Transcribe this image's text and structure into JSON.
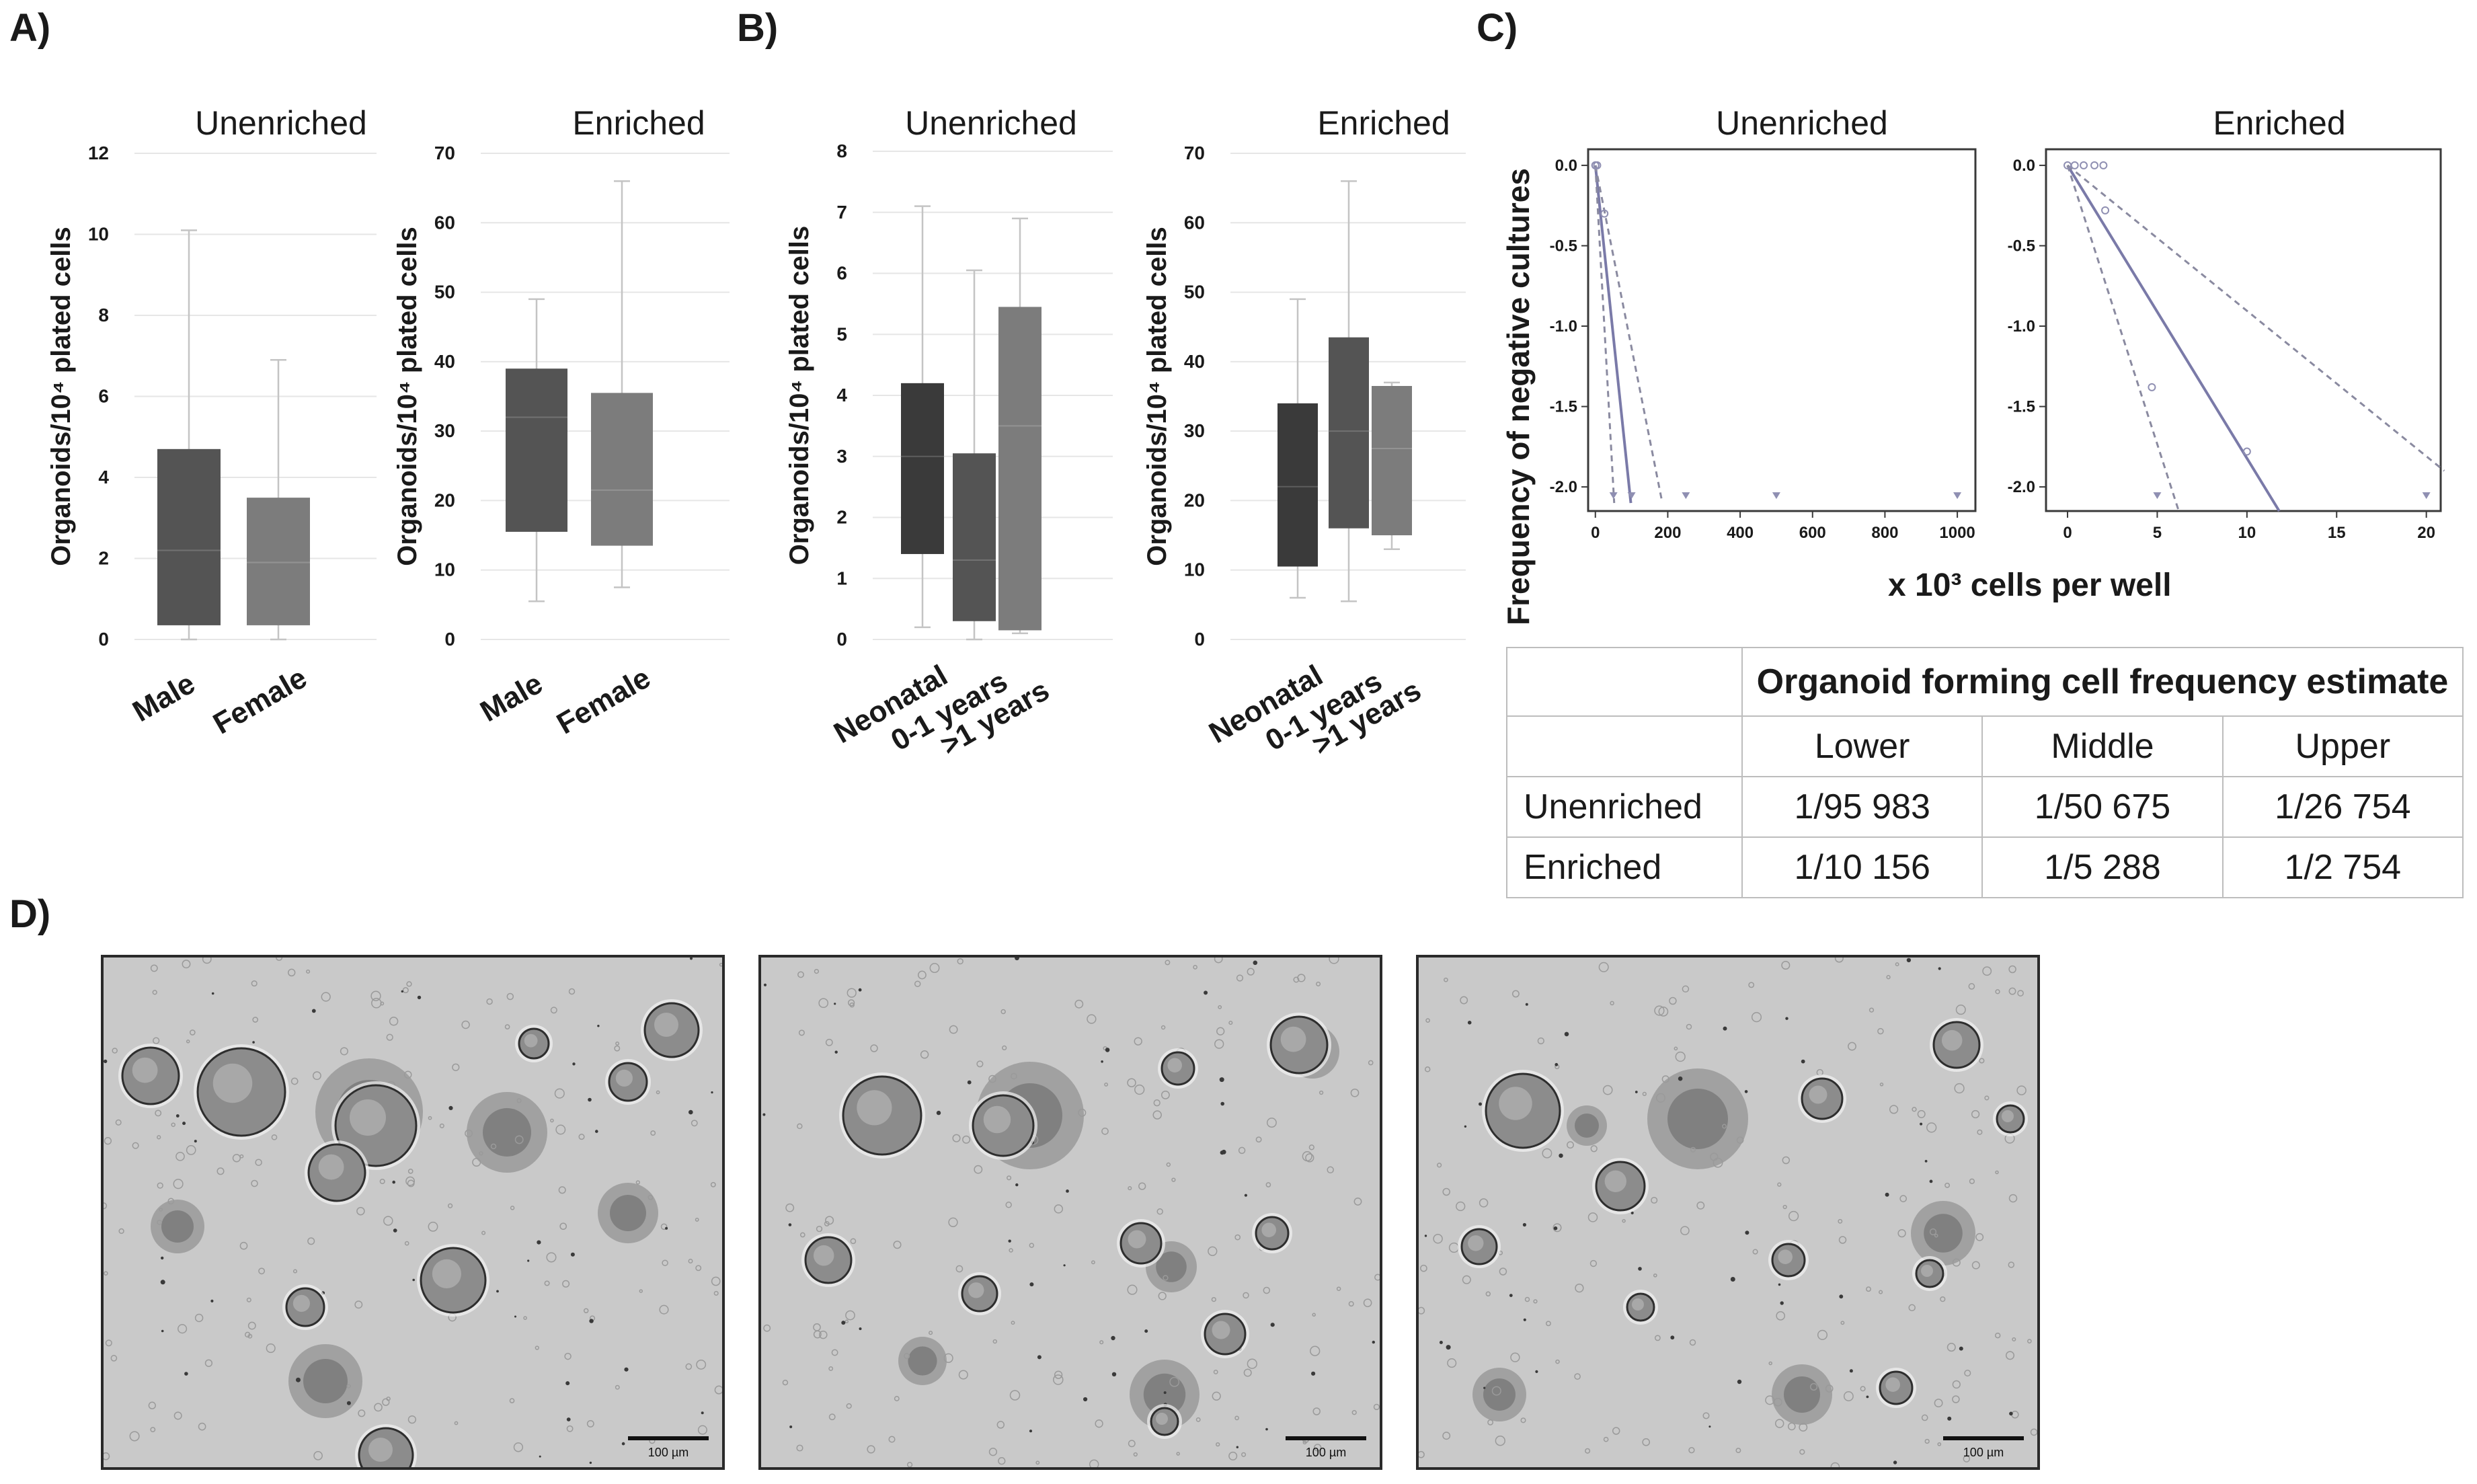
{
  "panel_labels": [
    "A)",
    "B)",
    "C)",
    "D)"
  ],
  "colors": {
    "box_dark": "#3a3a3a",
    "box_mid": "#545454",
    "box_light": "#7c7c7c",
    "line_main": "#7a7aa8",
    "line_ci": "#8a8aa0"
  },
  "chart_data": [
    {
      "type": "boxplot",
      "panel": "A",
      "title": "Unenriched",
      "ylabel": "Organoids/10⁴ plated cells",
      "categories": [
        "Male",
        "Female"
      ],
      "ylim": [
        0,
        12
      ],
      "yticks": [
        "0",
        "2",
        "4",
        "6",
        "8",
        "10",
        "12"
      ],
      "boxes": [
        {
          "category": "Male",
          "min": 0.0,
          "q1": 0.35,
          "median": 2.2,
          "q3": 4.7,
          "max": 10.1
        },
        {
          "category": "Female",
          "min": 0.0,
          "q1": 0.35,
          "median": 1.9,
          "q3": 3.5,
          "max": 6.9
        }
      ]
    },
    {
      "type": "boxplot",
      "panel": "A",
      "title": "Enriched",
      "ylabel": "Organoids/10⁴ plated cells",
      "categories": [
        "Male",
        "Female"
      ],
      "ylim": [
        0,
        70
      ],
      "yticks": [
        "0",
        "10",
        "20",
        "30",
        "40",
        "50",
        "60",
        "70"
      ],
      "boxes": [
        {
          "category": "Male",
          "min": 5.5,
          "q1": 15.5,
          "median": 32,
          "q3": 39,
          "max": 49
        },
        {
          "category": "Female",
          "min": 7.5,
          "q1": 13.5,
          "median": 21.5,
          "q3": 35.5,
          "max": 66
        }
      ]
    },
    {
      "type": "boxplot",
      "panel": "B",
      "title": "Unenriched",
      "ylabel": "Organoids/10⁴ plated cells",
      "categories": [
        "Neonatal",
        "0-1 years",
        ">1 years"
      ],
      "ylim": [
        0,
        8
      ],
      "yticks": [
        "0",
        "1",
        "2",
        "3",
        "4",
        "5",
        "6",
        "7",
        "8"
      ],
      "boxes": [
        {
          "category": "Neonatal",
          "min": 0.2,
          "q1": 1.4,
          "median": 3.0,
          "q3": 4.2,
          "max": 7.1
        },
        {
          "category": "0-1 years",
          "min": 0.0,
          "q1": 0.3,
          "median": 1.3,
          "q3": 3.05,
          "max": 6.05
        },
        {
          "category": ">1 years",
          "min": 0.1,
          "q1": 0.15,
          "median": 3.5,
          "q3": 5.45,
          "max": 6.9
        }
      ]
    },
    {
      "type": "boxplot",
      "panel": "B",
      "title": "Enriched",
      "ylabel": "Organoids/10⁴ plated cells",
      "categories": [
        "Neonatal",
        "0-1 years",
        ">1 years"
      ],
      "ylim": [
        0,
        70
      ],
      "yticks": [
        "0",
        "10",
        "20",
        "30",
        "40",
        "50",
        "60",
        "70"
      ],
      "boxes": [
        {
          "category": "Neonatal",
          "min": 6,
          "q1": 10.5,
          "median": 22,
          "q3": 34,
          "max": 49
        },
        {
          "category": "0-1 years",
          "min": 5.5,
          "q1": 16,
          "median": 30,
          "q3": 43.5,
          "max": 66
        },
        {
          "category": ">1 years",
          "min": 13,
          "q1": 15,
          "median": 27.5,
          "q3": 36.5,
          "max": 37
        }
      ]
    },
    {
      "type": "line",
      "panel": "C",
      "title": "Unenriched",
      "ylabel": "Frequency of negative cultures",
      "xlabel": "x 10³ cells per well",
      "xlim": [
        -20,
        1050
      ],
      "ylim": [
        -2.15,
        0.1
      ],
      "xticks": [
        "0",
        "200",
        "400",
        "600",
        "800",
        "1000"
      ],
      "yticks": [
        "0.0",
        "-0.5",
        "-1.0",
        "-1.5",
        "-2.0"
      ],
      "series": [
        {
          "style": "solid",
          "x": [
            0,
            98
          ],
          "y": [
            0,
            -2.1
          ]
        },
        {
          "style": "dashed",
          "x": [
            0,
            52
          ],
          "y": [
            0,
            -2.1
          ]
        },
        {
          "style": "dashed",
          "x": [
            0,
            185
          ],
          "y": [
            0,
            -2.1
          ]
        }
      ],
      "points": {
        "x": [
          0,
          0,
          5,
          25,
          50,
          100,
          250,
          500,
          1000
        ],
        "y": [
          0,
          0,
          0,
          -0.3,
          -2.05,
          -2.05,
          -2.05,
          -2.05,
          -2.05
        ]
      }
    },
    {
      "type": "line",
      "panel": "C",
      "title": "Enriched",
      "xlim": [
        -1.2,
        20.8
      ],
      "ylim": [
        -2.15,
        0.1
      ],
      "xticks": [
        "0",
        "5",
        "10",
        "15",
        "20"
      ],
      "yticks": [
        "0.0",
        "-0.5",
        "-1.0",
        "-1.5",
        "-2.0"
      ],
      "series": [
        {
          "style": "solid",
          "x": [
            0,
            11.8
          ],
          "y": [
            0,
            -2.15
          ]
        },
        {
          "style": "dashed",
          "x": [
            0,
            6.2
          ],
          "y": [
            0,
            -2.15
          ]
        },
        {
          "style": "dashed",
          "x": [
            0,
            21
          ],
          "y": [
            0,
            -1.9
          ]
        }
      ],
      "points": {
        "x": [
          0,
          0.4,
          0.9,
          1.5,
          2.0,
          2.1,
          4.7,
          5.0,
          10.0,
          20.0
        ],
        "y": [
          0,
          0,
          0,
          0,
          0,
          -0.28,
          -1.38,
          -2.05,
          -1.78,
          -2.05
        ]
      }
    },
    {
      "type": "table",
      "panel": "C",
      "header": "Organoid forming cell frequency estimate",
      "columns": [
        "Lower",
        "Middle",
        "Upper"
      ],
      "rows": [
        {
          "name": "Unenriched",
          "values": [
            "1/95 983",
            "1/50 675",
            "1/26 754"
          ]
        },
        {
          "name": "Enriched",
          "values": [
            "1/10 156",
            "1/5 288",
            "1/2 754"
          ]
        }
      ]
    }
  ],
  "micrographs": {
    "scale_bar_label": "100 µm",
    "count": 3
  }
}
